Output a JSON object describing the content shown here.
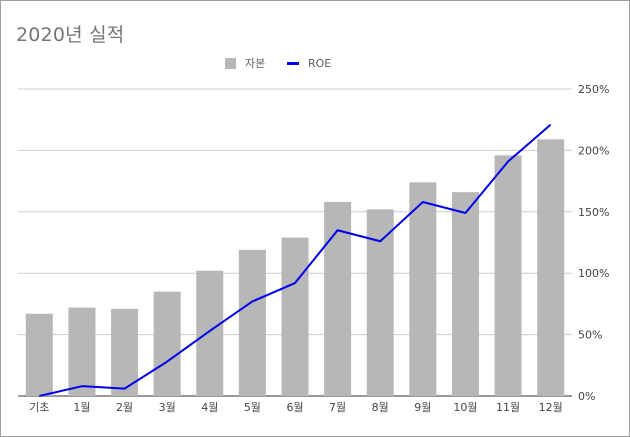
{
  "title": "2020년 실적",
  "chart_data": {
    "type": "bar",
    "title": "2020년 실적",
    "categories": [
      "기초",
      "1월",
      "2월",
      "3월",
      "4월",
      "5월",
      "6월",
      "7월",
      "8월",
      "9월",
      "10월",
      "11월",
      "12월"
    ],
    "series": [
      {
        "name": "자본",
        "type": "bar",
        "axis": "right",
        "color": "#b7b7b7",
        "values": [
          67,
          72,
          71,
          85,
          102,
          119,
          129,
          158,
          152,
          174,
          166,
          196,
          209
        ]
      },
      {
        "name": "ROE",
        "type": "line",
        "axis": "right",
        "color": "#0000ee",
        "values": [
          0,
          8,
          6,
          28,
          53,
          77,
          92,
          135,
          126,
          158,
          149,
          191,
          221
        ]
      }
    ],
    "y_axis": {
      "position": "right",
      "range": [
        0,
        250
      ],
      "ticks": [
        "0%",
        "50%",
        "100%",
        "150%",
        "200%",
        "250%"
      ]
    },
    "grid": true,
    "legend_position": "top"
  }
}
